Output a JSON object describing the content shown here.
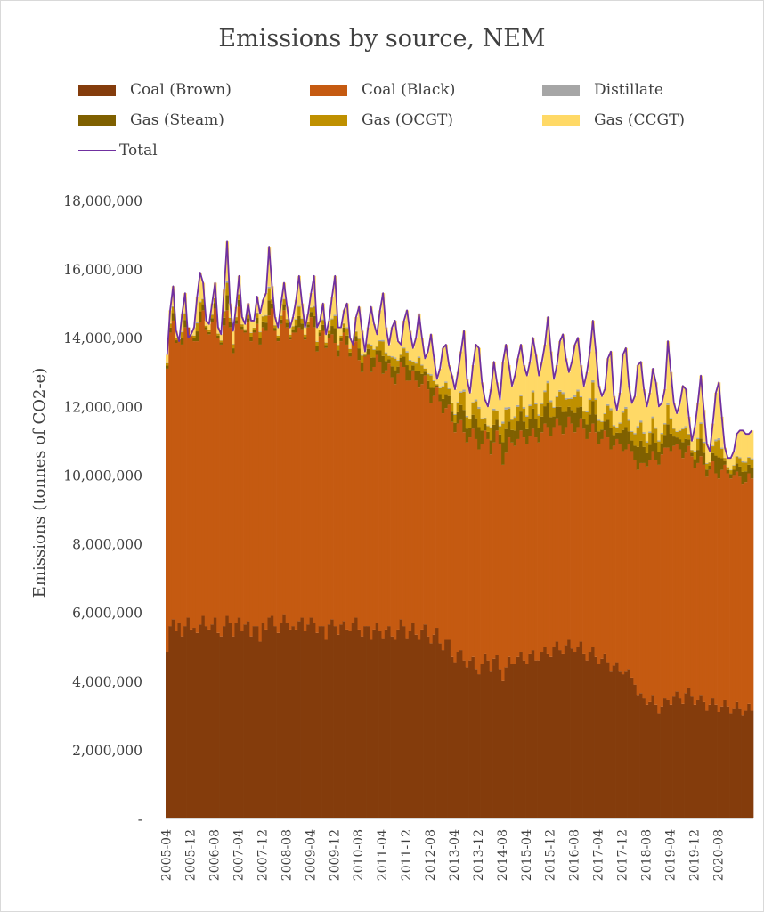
{
  "chart_data": {
    "type": "area",
    "stacked": true,
    "title": "Emissions by source, NEM",
    "xlabel": "",
    "ylabel": "Emissions (tonnes of CO2-e)",
    "ylim": [
      0,
      18000000
    ],
    "yticks": [
      0,
      2000000,
      4000000,
      6000000,
      8000000,
      10000000,
      12000000,
      14000000,
      16000000,
      18000000
    ],
    "ytick_labels": [
      "-",
      "2,000,000",
      "4,000,000",
      "6,000,000",
      "8,000,000",
      "10,000,000",
      "12,000,000",
      "14,000,000",
      "16,000,000",
      "18,000,000"
    ],
    "x_start": "2005-04",
    "x_end": "2021-01",
    "xtick_labels": [
      "2005-04",
      "2005-12",
      "2006-08",
      "2007-04",
      "2007-12",
      "2008-08",
      "2009-04",
      "2009-12",
      "2010-08",
      "2011-04",
      "2011-12",
      "2012-08",
      "2013-04",
      "2013-12",
      "2014-08",
      "2015-04",
      "2015-12",
      "2016-08",
      "2017-04",
      "2017-12",
      "2018-08",
      "2019-04",
      "2019-12",
      "2020-08"
    ],
    "grid": false,
    "legend_position": "top",
    "colors": {
      "coal_brown": "#843c0c",
      "coal_black": "#c55a11",
      "distillate": "#a6a6a6",
      "gas_steam": "#7f6000",
      "gas_ocgt": "#bf9000",
      "gas_ccgt": "#ffd966",
      "total": "#7030a0"
    },
    "series": [
      {
        "name": "Coal (Brown)",
        "key": "coal_brown",
        "values": [
          4850000,
          5600000,
          5800000,
          5450000,
          5700000,
          5300000,
          5600000,
          5850000,
          5500000,
          5550000,
          5400000,
          5650000,
          5900000,
          5600000,
          5500000,
          5650000,
          5850000,
          5400000,
          5300000,
          5600000,
          5900000,
          5700000,
          5300000,
          5700000,
          5850000,
          5450000,
          5650000,
          5750000,
          5300000,
          5600000,
          5600000,
          5150000,
          5700000,
          5500000,
          5850000,
          5900000,
          5600000,
          5400000,
          5700000,
          5950000,
          5700000,
          5500000,
          5600000,
          5500000,
          5750000,
          5850000,
          5450000,
          5650000,
          5850000,
          5700000,
          5400000,
          5600000,
          5600000,
          5200000,
          5650000,
          5800000,
          5600000,
          5350000,
          5650000,
          5750000,
          5500000,
          5450000,
          5700000,
          5850000,
          5500000,
          5300000,
          5600000,
          5600000,
          5200000,
          5500000,
          5700000,
          5450000,
          5250000,
          5500000,
          5600000,
          5300000,
          5200000,
          5500000,
          5800000,
          5600000,
          5250000,
          5450000,
          5700000,
          5350000,
          5200000,
          5500000,
          5650000,
          5300000,
          5100000,
          5350000,
          5550000,
          5100000,
          4900000,
          5200000,
          5200000,
          4700000,
          4550000,
          4850000,
          4900000,
          4600000,
          4400000,
          4600000,
          4700000,
          4350000,
          4200000,
          4500000,
          4800000,
          4600000,
          4300000,
          4650000,
          4750000,
          4350000,
          4000000,
          4400000,
          4700000,
          4500000,
          4500000,
          4700000,
          4850000,
          4600000,
          4500000,
          4800000,
          4900000,
          4600000,
          4600000,
          4850000,
          5000000,
          4800000,
          4700000,
          5000000,
          5150000,
          4900000,
          4800000,
          5050000,
          5200000,
          4950000,
          4850000,
          5000000,
          5150000,
          4800000,
          4600000,
          4850000,
          5000000,
          4700000,
          4500000,
          4650000,
          4800000,
          4550000,
          4300000,
          4450000,
          4550000,
          4300000,
          4200000,
          4300000,
          4350000,
          4100000,
          3900000,
          3600000,
          3650000,
          3500000,
          3300000,
          3400000,
          3600000,
          3300000,
          3050000,
          3250000,
          3500000,
          3450000,
          3300000,
          3550000,
          3700000,
          3500000,
          3350000,
          3650000,
          3800000,
          3550000,
          3300000,
          3450000,
          3600000,
          3400000,
          3150000,
          3300000,
          3500000,
          3300000,
          3100000,
          3250000,
          3450000,
          3250000,
          3050000,
          3200000,
          3400000,
          3200000,
          3000000,
          3150000,
          3350000,
          3150000,
          2900000,
          3050000,
          3300000,
          3150000,
          3000000,
          3200000,
          3400000,
          3200000,
          3000000,
          3150000,
          3400000,
          3200000
        ]
      },
      {
        "name": "Coal (Black)",
        "key": "coal_black",
        "values": [
          8250000,
          8550000,
          8700000,
          8400000,
          8250000,
          8500000,
          8700000,
          8450000,
          8550000,
          8350000,
          8500000,
          8800000,
          8900000,
          8650000,
          8600000,
          8800000,
          9000000,
          8600000,
          8500000,
          8750000,
          8900000,
          8600000,
          8250000,
          8700000,
          9050000,
          8800000,
          8500000,
          8700000,
          8600000,
          8550000,
          8800000,
          8650000,
          8600000,
          8700000,
          8800000,
          8950000,
          8600000,
          8500000,
          8700000,
          8850000,
          8600000,
          8450000,
          8550000,
          8650000,
          8550000,
          8400000,
          8500000,
          8650000,
          8750000,
          8600000,
          8200000,
          8450000,
          8600000,
          8500000,
          8350000,
          8300000,
          8250000,
          8100000,
          8250000,
          8400000,
          8300000,
          8000000,
          8150000,
          8050000,
          7850000,
          7700000,
          7850000,
          7900000,
          7800000,
          7650000,
          7800000,
          7850000,
          7700000,
          7550000,
          7650000,
          7550000,
          7450000,
          7450000,
          7500000,
          7550000,
          7500000,
          7300000,
          7350000,
          7400000,
          7350000,
          7150000,
          7250000,
          7200000,
          7000000,
          6950000,
          7000000,
          7050000,
          6900000,
          6750000,
          6850000,
          6850000,
          6700000,
          6650000,
          6700000,
          6650000,
          6550000,
          6500000,
          6650000,
          6700000,
          6550000,
          6400000,
          6500000,
          6450000,
          6300000,
          6300000,
          6550000,
          6550000,
          6300000,
          6250000,
          6400000,
          6450000,
          6350000,
          6350000,
          6450000,
          6500000,
          6400000,
          6350000,
          6450000,
          6500000,
          6350000,
          6400000,
          6500000,
          6600000,
          6450000,
          6400000,
          6500000,
          6550000,
          6400000,
          6350000,
          6500000,
          6550000,
          6400000,
          6400000,
          6500000,
          6550000,
          6450000,
          6400000,
          6500000,
          6550000,
          6400000,
          6400000,
          6500000,
          6550000,
          6450000,
          6400000,
          6500000,
          6600000,
          6500000,
          6450000,
          6550000,
          6600000,
          6550000,
          6550000,
          6700000,
          6850000,
          6950000,
          7050000,
          7100000,
          7150000,
          7250000,
          7350000,
          7300000,
          7350000,
          7400000,
          7300000,
          7200000,
          7250000,
          7150000,
          7000000,
          7050000,
          7000000,
          6900000,
          6900000,
          6950000,
          6900000,
          6800000,
          6850000,
          6900000,
          6750000,
          6800000,
          6900000,
          6850000,
          6800000,
          6850000,
          6800000,
          6700000,
          6750000,
          6750000,
          6650000,
          6700000,
          6750000,
          6650000,
          6650000,
          6750000,
          6700000,
          6650000,
          6700000,
          6650000,
          6550000,
          6600000,
          6600000,
          6550000,
          6550000,
          6600000,
          6550000
        ]
      },
      {
        "name": "Distillate",
        "key": "distillate",
        "values": []
      },
      {
        "name": "Gas (Steam)",
        "key": "gas_steam",
        "values": []
      },
      {
        "name": "Gas (OCGT)",
        "key": "gas_ocgt",
        "values": []
      },
      {
        "name": "Gas (CCGT)",
        "key": "gas_ccgt",
        "values": []
      },
      {
        "name": "Total",
        "key": "total",
        "values": [
          13500000,
          14800000,
          15500000,
          14200000,
          13900000,
          14700000,
          15300000,
          14000000,
          14100000,
          14300000,
          15200000,
          15900000,
          15600000,
          14500000,
          14400000,
          15000000,
          15600000,
          14300000,
          14100000,
          15400000,
          16800000,
          15000000,
          14200000,
          14900000,
          15800000,
          14600000,
          14400000,
          15000000,
          14500000,
          14500000,
          15200000,
          14700000,
          15100000,
          15300000,
          16650000,
          15500000,
          14600000,
          14300000,
          15000000,
          15600000,
          14900000,
          14300000,
          14600000,
          15100000,
          15800000,
          15000000,
          14300000,
          14700000,
          15300000,
          15800000,
          14300000,
          14500000,
          15000000,
          14100000,
          14500000,
          15200000,
          15800000,
          14300000,
          14300000,
          14800000,
          15000000,
          14000000,
          13800000,
          14600000,
          14900000,
          14200000,
          13600000,
          14300000,
          14900000,
          14400000,
          14100000,
          14800000,
          15300000,
          14300000,
          13800000,
          14300000,
          14500000,
          13900000,
          13800000,
          14500000,
          14800000,
          14200000,
          13700000,
          14000000,
          14700000,
          14000000,
          13400000,
          13600000,
          14100000,
          13400000,
          12800000,
          13100000,
          13700000,
          13800000,
          13200000,
          12900000,
          12500000,
          13000000,
          13600000,
          14200000,
          12800000,
          12400000,
          13200000,
          13800000,
          13700000,
          12700000,
          12200000,
          12000000,
          12500000,
          13300000,
          12700000,
          12200000,
          13300000,
          13800000,
          13200000,
          12600000,
          12900000,
          13400000,
          13800000,
          13200000,
          12900000,
          13300000,
          14000000,
          13500000,
          12900000,
          13300000,
          13800000,
          14600000,
          13600000,
          12800000,
          13200000,
          13900000,
          14100000,
          13400000,
          13000000,
          13300000,
          13800000,
          14000000,
          13200000,
          12600000,
          13000000,
          13600000,
          14500000,
          13600000,
          12600000,
          12300000,
          12500000,
          13400000,
          13600000,
          12300000,
          11900000,
          12400000,
          13500000,
          13700000,
          12600000,
          12100000,
          12300000,
          13200000,
          13300000,
          12500000,
          12000000,
          12400000,
          13100000,
          12700000,
          12000000,
          12100000,
          12500000,
          13900000,
          13000000,
          12100000,
          11800000,
          12100000,
          12600000,
          12500000,
          11700000,
          11000000,
          11400000,
          12100000,
          12900000,
          11900000,
          10900000,
          10700000,
          11500000,
          12400000,
          12700000,
          11700000,
          10800000,
          10500000,
          10500000,
          10700000,
          11200000,
          11300000,
          11300000,
          11200000,
          11200000,
          11300000
        ]
      }
    ]
  }
}
